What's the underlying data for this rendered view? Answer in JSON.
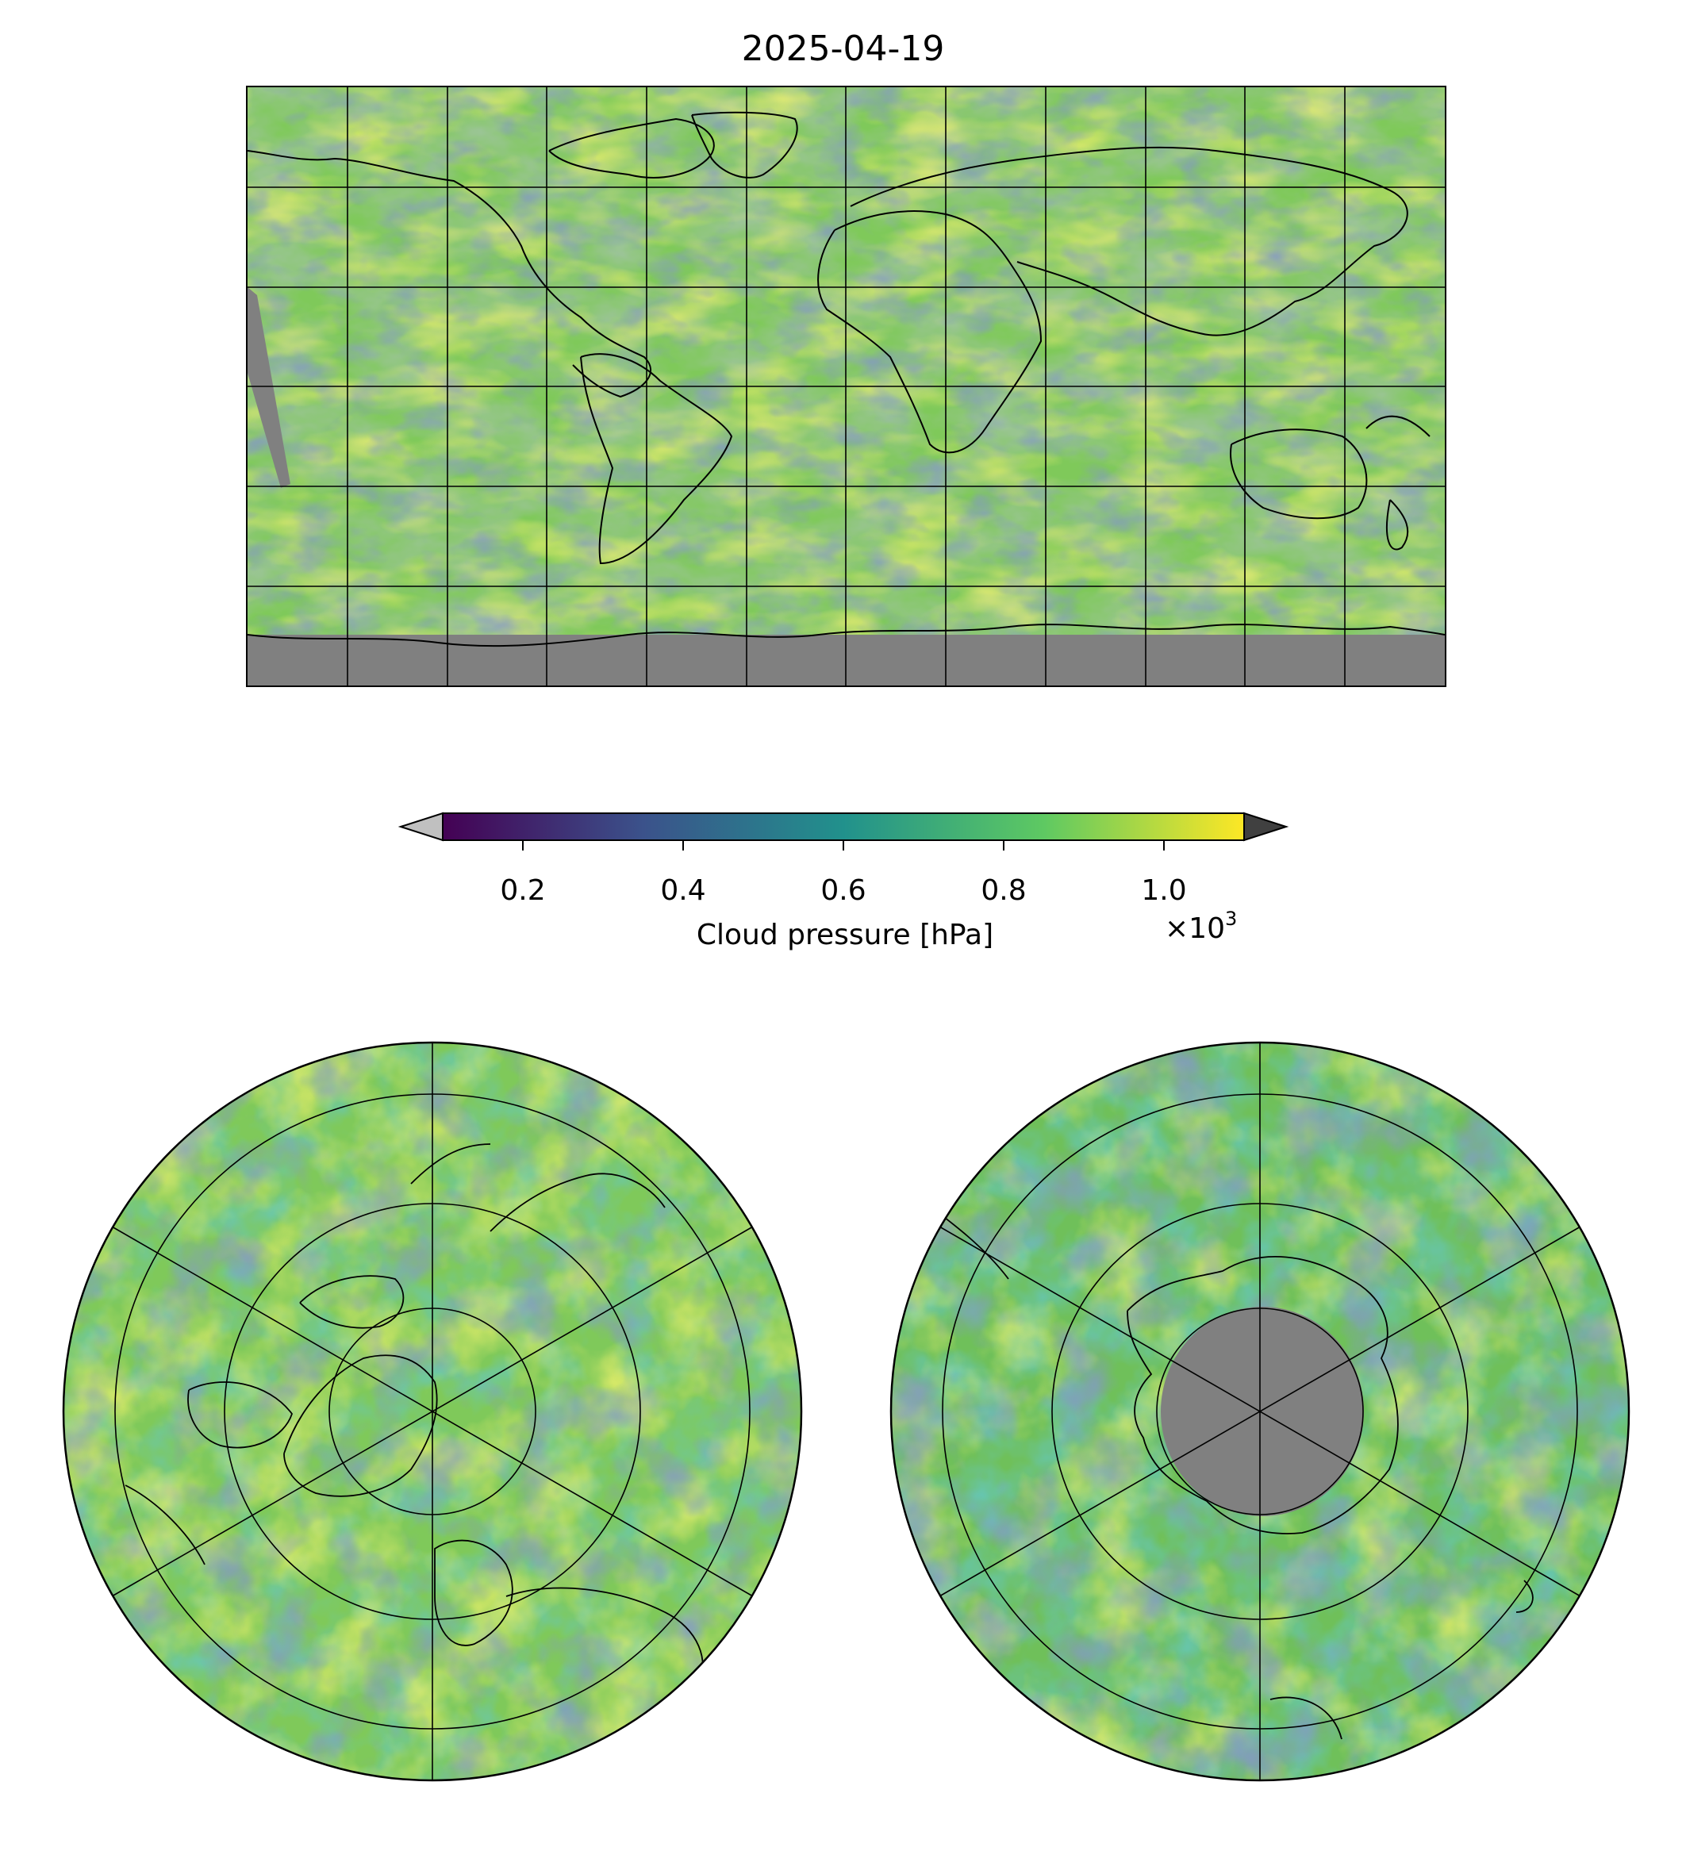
{
  "title": "2025-04-19",
  "colorbar": {
    "label": "Cloud pressure [hPa]",
    "multiplier_base": "×10",
    "multiplier_exp": "3",
    "ticks": [
      "0.2",
      "0.4",
      "0.6",
      "0.8",
      "1.0"
    ],
    "tick_values": [
      0.2,
      0.4,
      0.6,
      0.8,
      1.0
    ],
    "range": [
      0.1,
      1.1
    ],
    "colormap": [
      "#440154",
      "#3b528b",
      "#21918c",
      "#5ec962",
      "#fde725"
    ],
    "under_color": "#c0c0c0",
    "over_color": "#404040"
  },
  "maps": {
    "projections": [
      "equirectangular",
      "north-polar-stereographic",
      "south-polar-stereographic"
    ],
    "missing_data_color": "#808080",
    "coastline_color": "#000000",
    "gridlines": true
  }
}
